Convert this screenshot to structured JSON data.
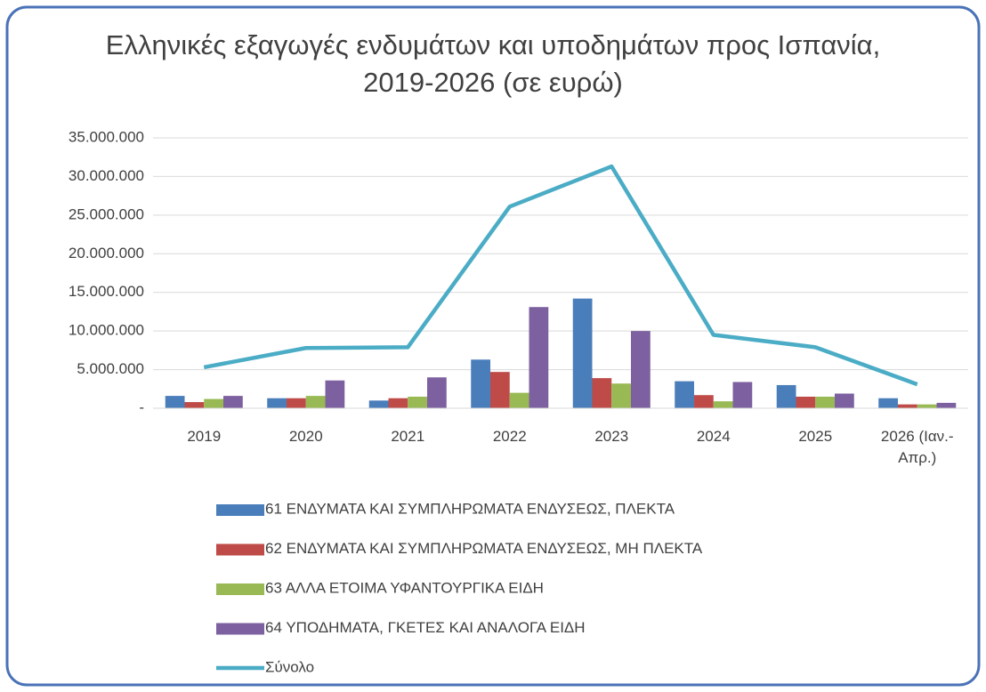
{
  "chart_data": {
    "type": "bar",
    "title": "Ελληνικές εξαγωγές ενδυμάτων και υποδημάτων προς Ισπανία, 2019-2026 (σε ευρώ)",
    "categories": [
      "2019",
      "2020",
      "2021",
      "2022",
      "2023",
      "2024",
      "2025",
      "2026 (Ιαν.-Απρ.)"
    ],
    "series": [
      {
        "name": "61 ΕΝΔΥΜΑΤΑ ΚΑΙ ΣΥΜΠΛΗΡΩΜΑΤΑ ΕΝΔΥΣΕΩΣ, ΠΛΕΚΤΑ",
        "type": "bar",
        "color": "#4a7ebb",
        "values": [
          1600000,
          1300000,
          1000000,
          6300000,
          14200000,
          3500000,
          3000000,
          1300000
        ]
      },
      {
        "name": "62 ΕΝΔΥΜΑΤΑ ΚΑΙ ΣΥΜΠΛΗΡΩΜΑΤΑ ΕΝΔΥΣΕΩΣ, ΜΗ ΠΛΕΚΤΑ",
        "type": "bar",
        "color": "#be4b48",
        "values": [
          800000,
          1300000,
          1300000,
          4700000,
          3900000,
          1700000,
          1500000,
          500000
        ]
      },
      {
        "name": "63 ΑΛΛΑ ΕΤΟΙΜΑ ΥΦΑΝΤΟΥΡΓΙΚΑ ΕΙΔΗ",
        "type": "bar",
        "color": "#98b954",
        "values": [
          1200000,
          1600000,
          1500000,
          2000000,
          3200000,
          900000,
          1500000,
          500000
        ]
      },
      {
        "name": "64 ΥΠΟΔΗΜΑΤΑ, ΓΚΕΤΕΣ ΚΑΙ ΑΝΑΛΟΓΑ ΕΙΔΗ",
        "type": "bar",
        "color": "#7d60a0",
        "values": [
          1600000,
          3600000,
          4000000,
          13100000,
          10000000,
          3400000,
          1900000,
          700000
        ]
      },
      {
        "name": "Σύνολο",
        "type": "line",
        "color": "#4bacc6",
        "values": [
          5300000,
          7800000,
          7900000,
          26100000,
          31300000,
          9500000,
          7900000,
          3100000
        ]
      }
    ],
    "ylim": [
      0,
      35000000
    ],
    "yticks": [
      {
        "value": 0,
        "label": "-"
      },
      {
        "value": 5000000,
        "label": "5.000.000"
      },
      {
        "value": 10000000,
        "label": "10.000.000"
      },
      {
        "value": 15000000,
        "label": "15.000.000"
      },
      {
        "value": 20000000,
        "label": "20.000.000"
      },
      {
        "value": 25000000,
        "label": "25.000.000"
      },
      {
        "value": 30000000,
        "label": "30.000.000"
      },
      {
        "value": 35000000,
        "label": "35.000.000"
      }
    ],
    "grid": true,
    "legend": "bottom"
  }
}
